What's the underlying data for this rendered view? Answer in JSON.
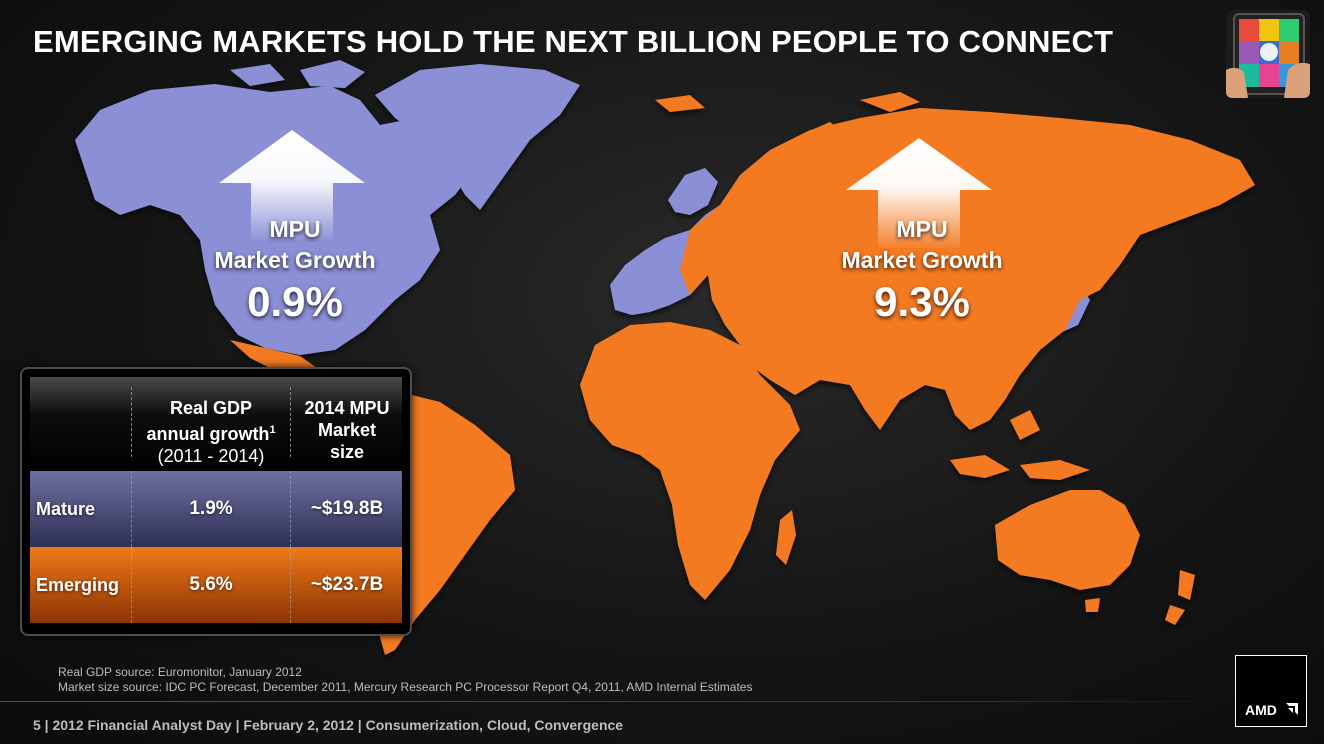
{
  "slide": {
    "title": "EMERGING MARKETS HOLD THE NEXT BILLION PEOPLE TO CONNECT"
  },
  "colors": {
    "mature": "#8a8fd6",
    "emerging": "#f47a20",
    "background": "#141414"
  },
  "mature_callout": {
    "line1": "MPU",
    "line2": "Market Growth",
    "value": "0.9%"
  },
  "emerging_callout": {
    "line1": "MPU",
    "line2": "Market Growth",
    "value": "9.3%"
  },
  "table": {
    "col1_line1": "Real GDP",
    "col1_line2": "annual growth",
    "col1_sup": "1",
    "col1_line3": "(2011 - 2014)",
    "col2_line1": "2014 MPU",
    "col2_line2": "Market",
    "col2_line3": "size",
    "rows": [
      {
        "label": "Mature",
        "gdp": "1.9%",
        "mpu": "~$19.8B"
      },
      {
        "label": "Emerging",
        "gdp": "5.6%",
        "mpu": "~$23.7B"
      }
    ]
  },
  "sources": {
    "line1": "Real GDP source: Euromonitor, January 2012",
    "line2": "Market size source: IDC PC Forecast, December 2011, Mercury Research PC Processor Report Q4, 2011, AMD Internal Estimates"
  },
  "footer": {
    "text": "5  |  2012 Financial Analyst Day  |  February 2, 2012  |  Consumerization, Cloud, Convergence"
  },
  "logo": {
    "text": "AMD"
  },
  "icons": {
    "thumbnail": "tablet-hands-image",
    "mature_arrow": "up-arrow-icon",
    "emerging_arrow": "up-arrow-icon",
    "logo_mark": "amd-arrow-icon"
  }
}
